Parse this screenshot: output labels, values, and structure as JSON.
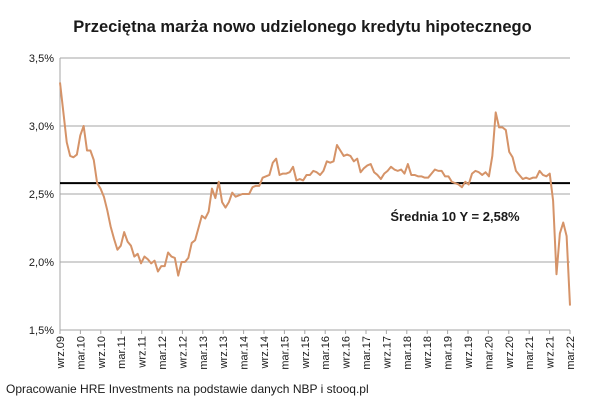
{
  "chart_data": {
    "type": "line",
    "title": "Przeciętna marża nowo udzielonego kredytu hipotecznego",
    "xlabel": "",
    "ylabel": "",
    "ylim": [
      1.5,
      3.5
    ],
    "y_ticks": [
      {
        "value": 1.5,
        "label": "1,5%"
      },
      {
        "value": 2.0,
        "label": "2,0%"
      },
      {
        "value": 2.5,
        "label": "2,5%"
      },
      {
        "value": 3.0,
        "label": "3,0%"
      },
      {
        "value": 3.5,
        "label": "3,5%"
      }
    ],
    "x_tick_labels": [
      "wrz.09",
      "mar.10",
      "wrz.10",
      "mar.11",
      "wrz.11",
      "mar.12",
      "wrz.12",
      "mar.13",
      "wrz.13",
      "mar.14",
      "wrz.14",
      "mar.15",
      "wrz.15",
      "mar.16",
      "wrz.16",
      "mar.17",
      "wrz.17",
      "mar.18",
      "wrz.18",
      "mar.19",
      "wrz.19",
      "mar.20",
      "wrz.20",
      "mar.21",
      "wrz.21",
      "mar.22"
    ],
    "grid": true,
    "series": [
      {
        "values": [
          3.32,
          3.1,
          2.88,
          2.78,
          2.77,
          2.79,
          2.93,
          3.0,
          2.82,
          2.82,
          2.75,
          2.58,
          2.54,
          2.48,
          2.38,
          2.26,
          2.17,
          2.09,
          2.12,
          2.22,
          2.15,
          2.12,
          2.04,
          2.06,
          1.99,
          2.04,
          2.02,
          1.99,
          2.01,
          1.93,
          1.97,
          1.97,
          2.07,
          2.04,
          2.03,
          1.9,
          2.0,
          2.0,
          2.03,
          2.14,
          2.16,
          2.25,
          2.34,
          2.32,
          2.37,
          2.54,
          2.47,
          2.59,
          2.44,
          2.4,
          2.44,
          2.51,
          2.48,
          2.49,
          2.5,
          2.5,
          2.5,
          2.55,
          2.56,
          2.56,
          2.62,
          2.63,
          2.64,
          2.73,
          2.76,
          2.64,
          2.65,
          2.65,
          2.66,
          2.7,
          2.6,
          2.61,
          2.6,
          2.64,
          2.64,
          2.67,
          2.66,
          2.64,
          2.67,
          2.74,
          2.73,
          2.74,
          2.86,
          2.82,
          2.78,
          2.79,
          2.78,
          2.74,
          2.76,
          2.66,
          2.69,
          2.71,
          2.72,
          2.66,
          2.64,
          2.61,
          2.65,
          2.67,
          2.7,
          2.68,
          2.67,
          2.68,
          2.65,
          2.72,
          2.64,
          2.64,
          2.63,
          2.63,
          2.62,
          2.62,
          2.65,
          2.68,
          2.67,
          2.67,
          2.63,
          2.63,
          2.59,
          2.58,
          2.57,
          2.55,
          2.59,
          2.57,
          2.65,
          2.67,
          2.66,
          2.64,
          2.66,
          2.63,
          2.78,
          3.1,
          2.99,
          2.99,
          2.97,
          2.81,
          2.77,
          2.67,
          2.64,
          2.61,
          2.62,
          2.61,
          2.62,
          2.62,
          2.67,
          2.64,
          2.63,
          2.65,
          2.45,
          1.91,
          2.21,
          2.29,
          2.19,
          1.68
        ]
      }
    ],
    "reference_line": {
      "value": 2.58,
      "label": "Średnia 10 Y = 2,58%"
    },
    "colors": {
      "series": "#D59368",
      "reference": "#000000",
      "grid": "#A6A6A6",
      "axis": "#A6A6A6",
      "text": "#1a1a1a"
    }
  },
  "footer": {
    "source": "Opracowanie HRE Investments na podstawie danych NBP i stooq.pl"
  }
}
